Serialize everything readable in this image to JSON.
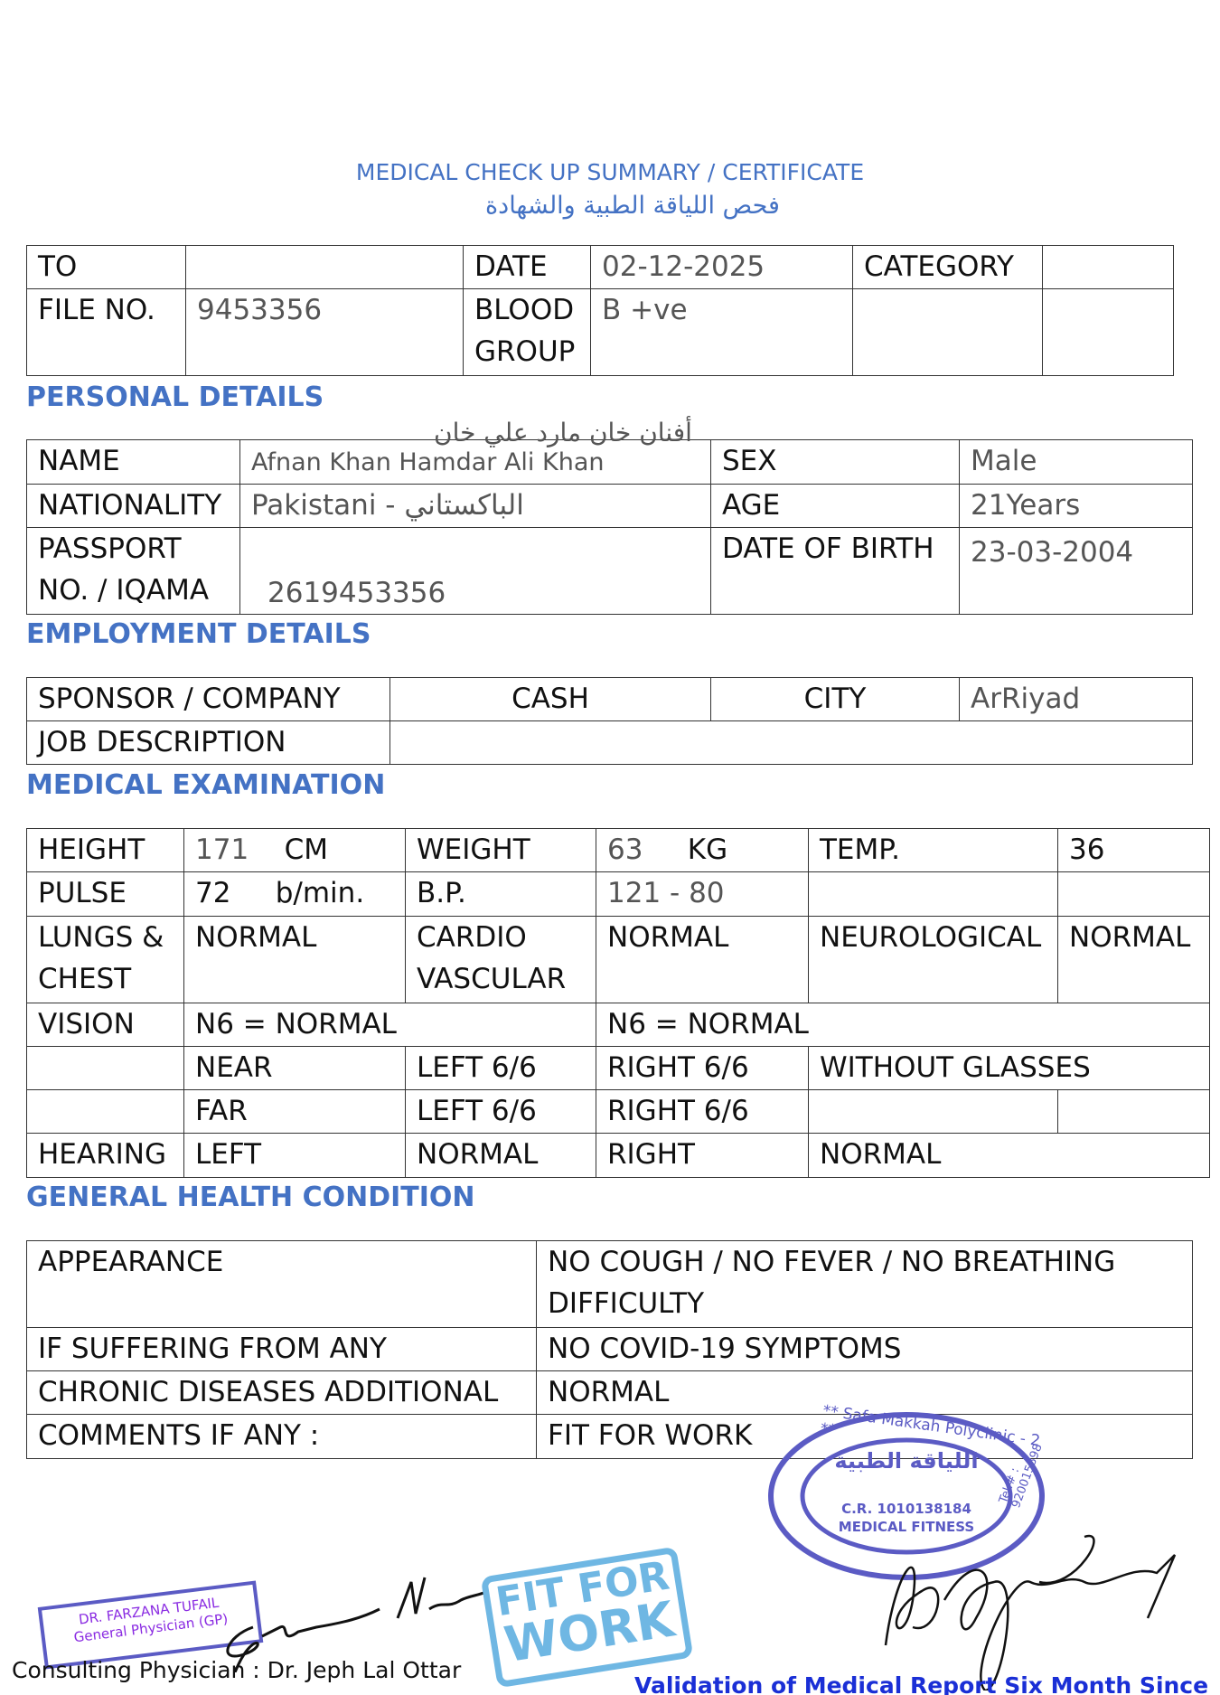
{
  "header": {
    "title": "MEDICAL CHECK UP SUMMARY / CERTIFICATE",
    "title_ar": "فحص اللياقة الطبية والشهادة"
  },
  "top": {
    "to_label": "TO",
    "to_value": "",
    "date_label": "DATE",
    "date_value": "02-12-2025",
    "category_label": "CATEGORY",
    "category_value": "",
    "file_label": "FILE NO.",
    "file_value": "9453356",
    "blood_label_1": "BLOOD",
    "blood_label_2": "GROUP",
    "blood_value": "B +ve"
  },
  "personal": {
    "heading": "PERSONAL DETAILS",
    "name_label": "NAME",
    "name_value": "Afnan Khan Hamdar Ali Khan",
    "name_ar": "أفنان خان مارد علي خان",
    "sex_label": "SEX",
    "sex_value": "Male",
    "nationality_label": "NATIONALITY",
    "nationality_value": "Pakistani - الباكستاني",
    "age_label": "AGE",
    "age_value": "21Years",
    "passport_label_1": "PASSPORT",
    "passport_label_2": "NO. / IQAMA",
    "passport_value": "2619453356",
    "dob_label": "DATE OF BIRTH",
    "dob_value": "23-03-2004"
  },
  "employment": {
    "heading": "EMPLOYMENT DETAILS",
    "sponsor_label": "SPONSOR / COMPANY",
    "sponsor_value": "CASH",
    "city_label": "CITY",
    "city_value": "ArRiyad",
    "job_label": "JOB DESCRIPTION",
    "job_value": ""
  },
  "medical": {
    "heading": "MEDICAL EXAMINATION",
    "height_label": "HEIGHT",
    "height_value": "171",
    "height_unit": "CM",
    "weight_label": "WEIGHT",
    "weight_value": "63",
    "weight_unit": "KG",
    "temp_label": "TEMP.",
    "temp_value": "36",
    "pulse_label": "PULSE",
    "pulse_value": "72",
    "pulse_unit": "b/min.",
    "bp_label": "B.P.",
    "bp_value": "121 - 80",
    "lungs_label_1": "LUNGS &",
    "lungs_label_2": "CHEST",
    "lungs_value": "NORMAL",
    "cardio_label_1": "CARDIO",
    "cardio_label_2": "VASCULAR",
    "cardio_value": "NORMAL",
    "neuro_label": "NEUROLOGICAL",
    "neuro_value": "NORMAL",
    "vision_label": "VISION",
    "vision_left": "N6 = NORMAL",
    "vision_right": "N6 = NORMAL",
    "near_label": "NEAR",
    "near_left": "LEFT 6/6",
    "near_right": "RIGHT 6/6",
    "near_note": "WITHOUT GLASSES",
    "far_label": "FAR",
    "far_left": "LEFT 6/6",
    "far_right": "RIGHT 6/6",
    "hearing_label": "HEARING",
    "hearing_left_label": "LEFT",
    "hearing_left": "NORMAL",
    "hearing_right_label": "RIGHT",
    "hearing_right": "NORMAL"
  },
  "general": {
    "heading": "GENERAL HEALTH CONDITION",
    "rows": [
      {
        "label": "APPEARANCE",
        "value_1": "NO COUGH / NO FEVER / NO BREATHING",
        "value_2": "DIFFICULTY"
      },
      {
        "label": "IF SUFFERING FROM ANY",
        "value": "NO COVID-19 SYMPTOMS"
      },
      {
        "label": "CHRONIC DISEASES ADDITIONAL",
        "value": "NORMAL"
      },
      {
        "label": "COMMENTS IF ANY :",
        "value": "FIT FOR WORK"
      }
    ]
  },
  "stamps": {
    "gp_name": "DR. FARZANA TUFAIL",
    "gp_title": "General Physician (GP)",
    "fit_1": "FIT FOR",
    "fit_2": "WORK",
    "clinic": "** Safa Makkah Polyclinic - 2 **",
    "clinic_ar": "اللياقة الطبية",
    "cr": "C.R. 1010138184",
    "fitness": "MEDICAL FITNESS",
    "tel": "Tel.# : 920015898"
  },
  "footer": {
    "physician": "Consulting Physician : Dr. Jeph Lal Ottar",
    "validation": "Validation of Medical Report Six Month Since Issue",
    "colors": {
      "accent": "#4472c4",
      "validation": "#1a2fd6",
      "stamp": "#5b5bc4",
      "fit_stamp": "#6fb7e3"
    }
  }
}
